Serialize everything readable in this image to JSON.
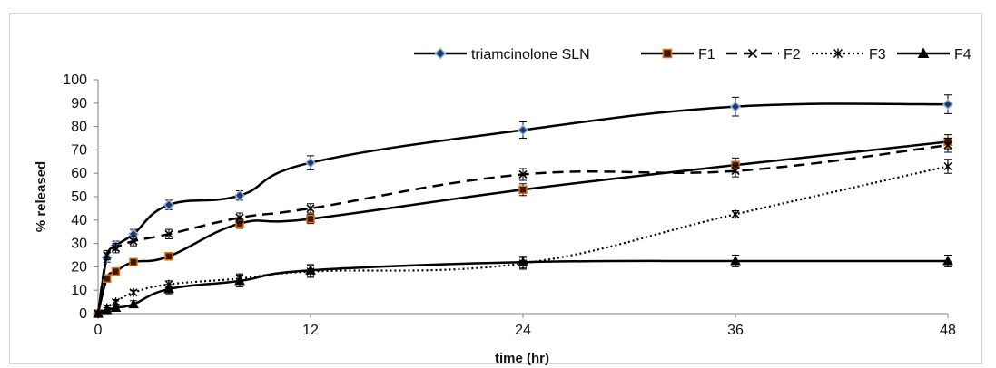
{
  "chart_data": {
    "type": "line",
    "xlabel": "time (hr)",
    "ylabel": "% released",
    "xlim": [
      0,
      48
    ],
    "ylim": [
      0,
      100
    ],
    "x_ticks": [
      "0",
      "12",
      "24",
      "36",
      "48"
    ],
    "y_ticks": [
      "0",
      "10",
      "20",
      "30",
      "40",
      "50",
      "60",
      "70",
      "80",
      "90",
      "100"
    ],
    "grid": false,
    "legend_position": "top-right",
    "series": [
      {
        "name": "triamcinolone SLN",
        "marker": "diamond",
        "marker_fill": "#1f3864",
        "marker_stroke": "#8eb4e3",
        "line_color": "#000000",
        "line_style": "solid",
        "x": [
          0,
          0.5,
          1,
          2,
          4,
          8,
          12,
          24,
          36,
          48
        ],
        "y": [
          0,
          24,
          29,
          34,
          46.5,
          50.5,
          64.5,
          78.5,
          88.5,
          89.5
        ],
        "err": [
          0,
          2,
          2,
          2,
          2,
          2,
          3,
          3.5,
          4,
          4
        ]
      },
      {
        "name": "F1",
        "marker": "square",
        "marker_fill": "#3a1a04",
        "marker_stroke": "#e46c0a",
        "line_color": "#000000",
        "line_style": "solid",
        "x": [
          0,
          0.5,
          1,
          2,
          4,
          8,
          12,
          24,
          36,
          48
        ],
        "y": [
          0,
          15,
          18,
          22,
          24.5,
          38.5,
          40.5,
          53,
          63.5,
          73.5
        ],
        "err": [
          0,
          1.5,
          1.5,
          1.5,
          1.5,
          2,
          2,
          2.5,
          3,
          3
        ]
      },
      {
        "name": "F2",
        "marker": "x",
        "marker_fill": "none",
        "marker_stroke": "#000000",
        "line_color": "#000000",
        "line_style": "dashed",
        "x": [
          0,
          0.5,
          1,
          2,
          4,
          8,
          12,
          24,
          36,
          48
        ],
        "y": [
          0,
          25,
          28,
          31,
          34,
          41,
          45,
          59.5,
          61,
          72
        ],
        "err": [
          0,
          2,
          2,
          2,
          2,
          2,
          2,
          2.5,
          2.5,
          3
        ]
      },
      {
        "name": "F3",
        "marker": "asterisk",
        "marker_fill": "none",
        "marker_stroke": "#000000",
        "line_color": "#000000",
        "line_style": "dotted",
        "x": [
          0,
          0.5,
          1,
          2,
          4,
          8,
          12,
          24,
          36,
          48
        ],
        "y": [
          0,
          2.5,
          5,
          9,
          12.5,
          15,
          18,
          21.5,
          42.5,
          63
        ],
        "err": [
          0,
          1,
          1,
          1,
          1.5,
          2,
          2.5,
          2.5,
          1.5,
          3
        ]
      },
      {
        "name": "F4",
        "marker": "triangle",
        "marker_fill": "#000000",
        "marker_stroke": "#000000",
        "line_color": "#000000",
        "line_style": "solid",
        "x": [
          0,
          0.5,
          1,
          2,
          4,
          8,
          12,
          24,
          36,
          48
        ],
        "y": [
          0,
          1.5,
          2.5,
          4,
          10.5,
          14,
          18.5,
          22,
          22.5,
          22.5
        ],
        "err": [
          0,
          1,
          1,
          1.5,
          2,
          2.5,
          2.5,
          2.5,
          2.5,
          2.5
        ]
      }
    ]
  }
}
